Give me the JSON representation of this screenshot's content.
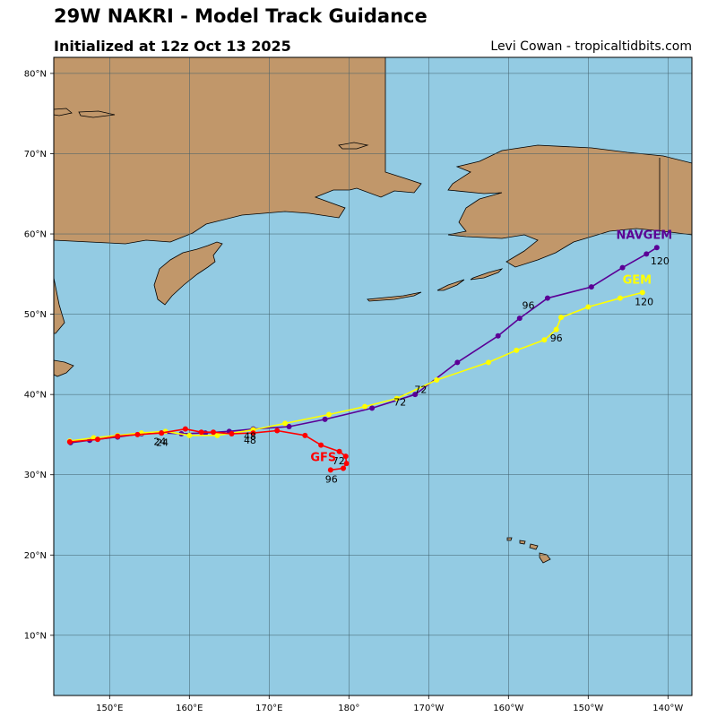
{
  "header": {
    "title": "29W NAKRI - Model Track Guidance",
    "subtitle": "Initialized at 12z Oct 13 2025",
    "credit": "Levi Cowan - tropicaltidbits.com"
  },
  "colors": {
    "ocean": "#93cbe3",
    "land": "#c1976a",
    "grid": "#3f5f6a"
  },
  "axes": {
    "lon_ticks": [
      "150°E",
      "160°E",
      "170°E",
      "180°",
      "170°W",
      "160°W",
      "150°W",
      "140°W"
    ],
    "lat_ticks": [
      "10°N",
      "20°N",
      "30°N",
      "40°N",
      "50°N",
      "60°N",
      "70°N",
      "80°N"
    ]
  },
  "chart_data": {
    "type": "map",
    "map_extent": {
      "lon": [
        143,
        223
      ],
      "lat": [
        2.5,
        82
      ]
    },
    "tracks": [
      {
        "name": "NAVGEM",
        "color": "#5b0096",
        "label": "NAVGEM",
        "points": [
          [
            145.1,
            34.0
          ],
          [
            147.5,
            34.3
          ],
          [
            151.0,
            34.7
          ],
          [
            154.0,
            35.1
          ],
          [
            156.5,
            35.2
          ],
          [
            159.0,
            35.1
          ],
          [
            162.0,
            35.2
          ],
          [
            165.0,
            35.4
          ],
          [
            168.0,
            35.7
          ],
          [
            172.5,
            36.0
          ],
          [
            177.0,
            36.9
          ],
          [
            182.9,
            38.3
          ],
          [
            188.3,
            40.0
          ],
          [
            193.6,
            44.0
          ],
          [
            198.7,
            47.3
          ],
          [
            201.4,
            49.5
          ],
          [
            204.9,
            52.0
          ],
          [
            210.4,
            53.4
          ],
          [
            214.3,
            55.8
          ],
          [
            217.3,
            57.5
          ],
          [
            218.6,
            58.3
          ]
        ],
        "labels": [
          {
            "text": "24",
            "lon": 156.3,
            "lat": 33.7
          },
          {
            "text": "48",
            "lon": 167.6,
            "lat": 33.9
          },
          {
            "text": "72",
            "lon": 186.4,
            "lat": 38.6
          },
          {
            "text": "96",
            "lon": 202.5,
            "lat": 50.7
          },
          {
            "text": "120",
            "lon": 219.0,
            "lat": 56.2
          }
        ]
      },
      {
        "name": "GEM",
        "color": "#ffff00",
        "label": "GEM",
        "points": [
          [
            145.0,
            34.2
          ],
          [
            148.0,
            34.6
          ],
          [
            151.0,
            34.9
          ],
          [
            154.0,
            35.2
          ],
          [
            157.0,
            35.4
          ],
          [
            160.0,
            34.9
          ],
          [
            163.5,
            34.9
          ],
          [
            168.0,
            35.6
          ],
          [
            172.0,
            36.4
          ],
          [
            177.5,
            37.5
          ],
          [
            182.0,
            38.5
          ],
          [
            186.0,
            39.5
          ],
          [
            191.0,
            41.8
          ],
          [
            197.5,
            44.0
          ],
          [
            201.0,
            45.5
          ],
          [
            204.5,
            46.8
          ],
          [
            206.0,
            48.1
          ],
          [
            206.6,
            49.6
          ],
          [
            210.0,
            50.9
          ],
          [
            214.0,
            52.0
          ],
          [
            216.8,
            52.7
          ]
        ],
        "labels": [
          {
            "text": "24",
            "lon": 156.6,
            "lat": 33.6
          },
          {
            "text": "48",
            "lon": 167.6,
            "lat": 34.4
          },
          {
            "text": "72",
            "lon": 189.0,
            "lat": 40.2
          },
          {
            "text": "96",
            "lon": 206.0,
            "lat": 46.6
          },
          {
            "text": "120",
            "lon": 217.0,
            "lat": 51.1
          }
        ]
      },
      {
        "name": "GFS",
        "color": "#ff0000",
        "label": "GFS",
        "points": [
          [
            145.0,
            34.1
          ],
          [
            148.5,
            34.4
          ],
          [
            151.0,
            34.8
          ],
          [
            153.5,
            35.0
          ],
          [
            156.5,
            35.2
          ],
          [
            159.5,
            35.7
          ],
          [
            161.5,
            35.3
          ],
          [
            163.0,
            35.3
          ],
          [
            165.3,
            35.1
          ],
          [
            168.0,
            35.2
          ],
          [
            171.0,
            35.5
          ],
          [
            174.5,
            34.9
          ],
          [
            176.5,
            33.7
          ],
          [
            178.8,
            32.9
          ],
          [
            179.6,
            32.3
          ],
          [
            179.7,
            31.4
          ],
          [
            179.3,
            30.8
          ],
          [
            177.7,
            30.6
          ]
        ],
        "labels": [
          {
            "text": "72",
            "lon": 178.7,
            "lat": 31.3
          },
          {
            "text": "96",
            "lon": 177.8,
            "lat": 29.0
          }
        ]
      }
    ]
  }
}
